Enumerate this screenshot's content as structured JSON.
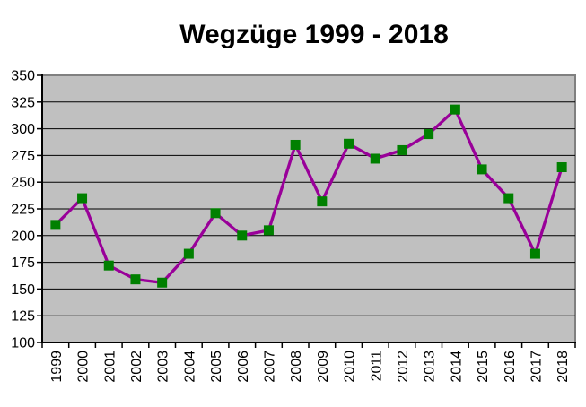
{
  "chart_data": {
    "type": "line",
    "title": "Wegzüge 1999 - 2018",
    "categories": [
      "1999",
      "2000",
      "2001",
      "2002",
      "2003",
      "2004",
      "2005",
      "2006",
      "2007",
      "2008",
      "2009",
      "2010",
      "2011",
      "2012",
      "2013",
      "2014",
      "2015",
      "2016",
      "2017",
      "2018"
    ],
    "values": [
      210,
      235,
      172,
      159,
      156,
      183,
      221,
      200,
      205,
      285,
      232,
      286,
      272,
      280,
      295,
      318,
      262,
      235,
      183,
      264
    ],
    "xlabel": "",
    "ylabel": "",
    "ylim": [
      100,
      350
    ],
    "y_ticks": [
      100,
      125,
      150,
      175,
      200,
      225,
      250,
      275,
      300,
      325,
      350
    ],
    "grid": true,
    "legend": false,
    "marker_shape": "square",
    "x_label_rotation": -90,
    "colors": {
      "line": "#990099",
      "marker": "#008000",
      "plot_background": "#C0C0C0",
      "plot_border": "#808080",
      "axis": "#000000",
      "gridline": "#000000",
      "page_background": "#FFFFFF",
      "title_text": "#000000",
      "axis_label_text": "#000000"
    }
  }
}
